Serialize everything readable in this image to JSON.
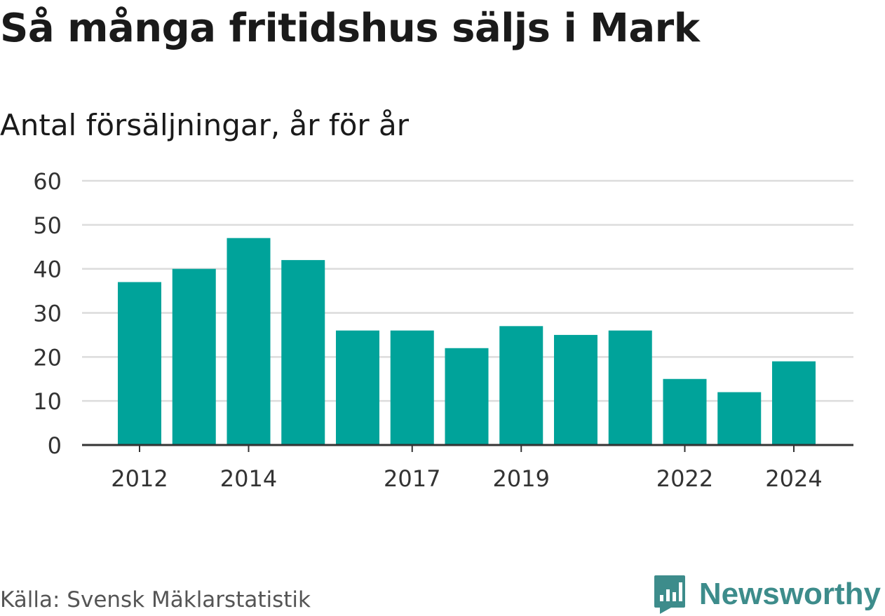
{
  "title": "Så många fritidshus säljs i Mark",
  "subtitle": "Antal försäljningar, år för år",
  "source": "Källa: Svensk Mäklarstatistik",
  "brand": {
    "name": "Newsworthy",
    "icon": "newsworthy-logo-icon",
    "color": "#3d8c8b"
  },
  "chart_data": {
    "type": "bar",
    "categories": [
      "2012",
      "2013",
      "2014",
      "2015",
      "2016",
      "2017",
      "2018",
      "2019",
      "2020",
      "2021",
      "2022",
      "2023",
      "2024"
    ],
    "values": [
      37,
      40,
      47,
      42,
      26,
      26,
      22,
      27,
      25,
      26,
      15,
      12,
      19
    ],
    "x_tick_labels": [
      "2012",
      "2014",
      "2017",
      "2019",
      "2022",
      "2024"
    ],
    "y_ticks": [
      0,
      10,
      20,
      30,
      40,
      50,
      60
    ],
    "ylim": [
      0,
      60
    ],
    "grid": true,
    "bar_color": "#00a39a",
    "xlabel": "",
    "ylabel": ""
  }
}
